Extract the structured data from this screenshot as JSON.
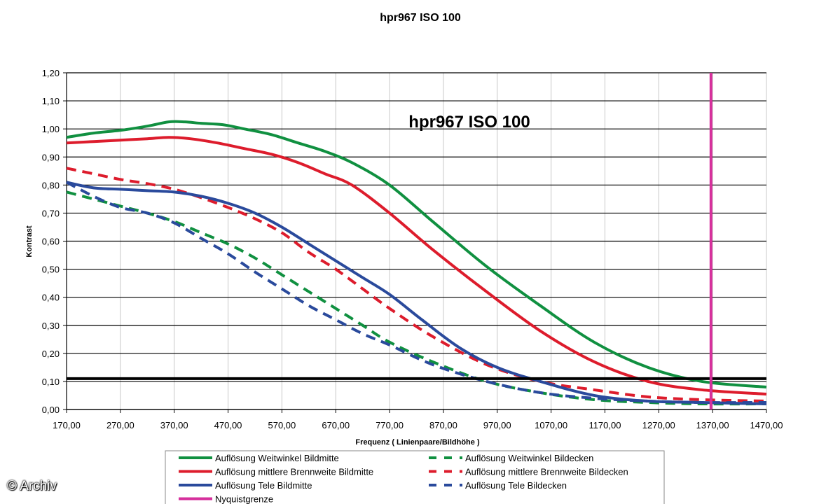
{
  "chart_data": {
    "type": "line",
    "title": "hpr967 ISO 100",
    "inner_title": "hpr967 ISO 100",
    "xlabel": "Frequenz ( Linienpaare/Bildhöhe )",
    "ylabel": "Kontrast",
    "xlim": [
      170,
      1470
    ],
    "ylim": [
      0,
      1.2
    ],
    "x_ticks": [
      "170,00",
      "270,00",
      "370,00",
      "470,00",
      "570,00",
      "670,00",
      "770,00",
      "870,00",
      "970,00",
      "1070,00",
      "1170,00",
      "1270,00",
      "1370,00",
      "1470,00"
    ],
    "y_ticks": [
      "0,00",
      "0,10",
      "0,20",
      "0,30",
      "0,40",
      "0,50",
      "0,60",
      "0,70",
      "0,80",
      "0,90",
      "1,00",
      "1,10",
      "1,20"
    ],
    "grid": true,
    "legend_position": "bottom",
    "threshold_y": 0.11,
    "nyquist_x": 1367,
    "series": [
      {
        "name": "Auflösung Weitwinkel Bildmitte",
        "color": "#109040",
        "dash": false,
        "x": [
          170,
          220,
          270,
          320,
          360,
          390,
          420,
          460,
          500,
          550,
          600,
          650,
          700,
          770,
          850,
          950,
          1050,
          1150,
          1250,
          1350,
          1470
        ],
        "y": [
          0.97,
          0.985,
          0.995,
          1.01,
          1.025,
          1.025,
          1.02,
          1.015,
          1.0,
          0.98,
          0.95,
          0.92,
          0.88,
          0.8,
          0.67,
          0.51,
          0.37,
          0.24,
          0.15,
          0.1,
          0.08
        ]
      },
      {
        "name": "Auflösung mittlere Brennweite Bildmitte",
        "color": "#dd1c2c",
        "dash": false,
        "x": [
          170,
          220,
          270,
          320,
          360,
          400,
          450,
          500,
          550,
          600,
          650,
          700,
          770,
          850,
          950,
          1050,
          1150,
          1250,
          1350,
          1470
        ],
        "y": [
          0.95,
          0.955,
          0.96,
          0.965,
          0.97,
          0.965,
          0.95,
          0.93,
          0.91,
          0.88,
          0.84,
          0.8,
          0.7,
          0.57,
          0.42,
          0.28,
          0.17,
          0.1,
          0.07,
          0.055
        ]
      },
      {
        "name": "Auflösung Tele Bildmitte",
        "color": "#2a4a9c",
        "dash": false,
        "x": [
          170,
          220,
          270,
          320,
          370,
          420,
          470,
          520,
          570,
          620,
          670,
          720,
          770,
          830,
          900,
          970,
          1050,
          1150,
          1250,
          1350,
          1470
        ],
        "y": [
          0.81,
          0.79,
          0.785,
          0.78,
          0.775,
          0.76,
          0.735,
          0.7,
          0.65,
          0.59,
          0.53,
          0.47,
          0.41,
          0.32,
          0.22,
          0.15,
          0.1,
          0.05,
          0.03,
          0.025,
          0.02
        ]
      },
      {
        "name": "Auflösung Weitwinkel Bildecken",
        "color": "#109040",
        "dash": true,
        "x": [
          170,
          220,
          270,
          320,
          370,
          420,
          470,
          520,
          570,
          620,
          670,
          720,
          770,
          850,
          950,
          1050,
          1150,
          1250,
          1350,
          1470
        ],
        "y": [
          0.775,
          0.75,
          0.725,
          0.7,
          0.67,
          0.63,
          0.59,
          0.54,
          0.48,
          0.42,
          0.36,
          0.3,
          0.24,
          0.17,
          0.1,
          0.06,
          0.035,
          0.025,
          0.02,
          0.02
        ]
      },
      {
        "name": "Auflösung mittlere Brennweite Bildecken",
        "color": "#dd1c2c",
        "dash": true,
        "x": [
          170,
          220,
          270,
          320,
          370,
          420,
          470,
          520,
          570,
          620,
          670,
          720,
          770,
          850,
          950,
          1050,
          1150,
          1250,
          1350,
          1470
        ],
        "y": [
          0.86,
          0.84,
          0.82,
          0.805,
          0.785,
          0.755,
          0.72,
          0.68,
          0.63,
          0.56,
          0.5,
          0.43,
          0.36,
          0.26,
          0.16,
          0.1,
          0.07,
          0.045,
          0.035,
          0.03
        ]
      },
      {
        "name": "Auflösung Tele Bildecken",
        "color": "#2a4a9c",
        "dash": true,
        "x": [
          170,
          220,
          270,
          320,
          370,
          420,
          470,
          520,
          570,
          620,
          670,
          720,
          770,
          850,
          950,
          1050,
          1150,
          1250,
          1350,
          1470
        ],
        "y": [
          0.81,
          0.76,
          0.72,
          0.7,
          0.665,
          0.61,
          0.555,
          0.49,
          0.43,
          0.37,
          0.32,
          0.27,
          0.23,
          0.16,
          0.1,
          0.06,
          0.04,
          0.03,
          0.025,
          0.025
        ]
      }
    ],
    "legend": [
      {
        "label": "Auflösung Weitwinkel Bildmitte",
        "color": "#109040",
        "dash": false
      },
      {
        "label": "Auflösung Weitwinkel Bildecken",
        "color": "#109040",
        "dash": true
      },
      {
        "label": "Auflösung mittlere Brennweite Bildmitte",
        "color": "#dd1c2c",
        "dash": false
      },
      {
        "label": "Auflösung mittlere Brennweite Bildecken",
        "color": "#dd1c2c",
        "dash": true
      },
      {
        "label": "Auflösung Tele Bildmitte",
        "color": "#2a4a9c",
        "dash": false
      },
      {
        "label": "Auflösung Tele Bildecken",
        "color": "#2a4a9c",
        "dash": true
      },
      {
        "label": "Nyquistgrenze",
        "color": "#d6309c",
        "dash": false
      }
    ]
  },
  "watermark": "© Archiv"
}
